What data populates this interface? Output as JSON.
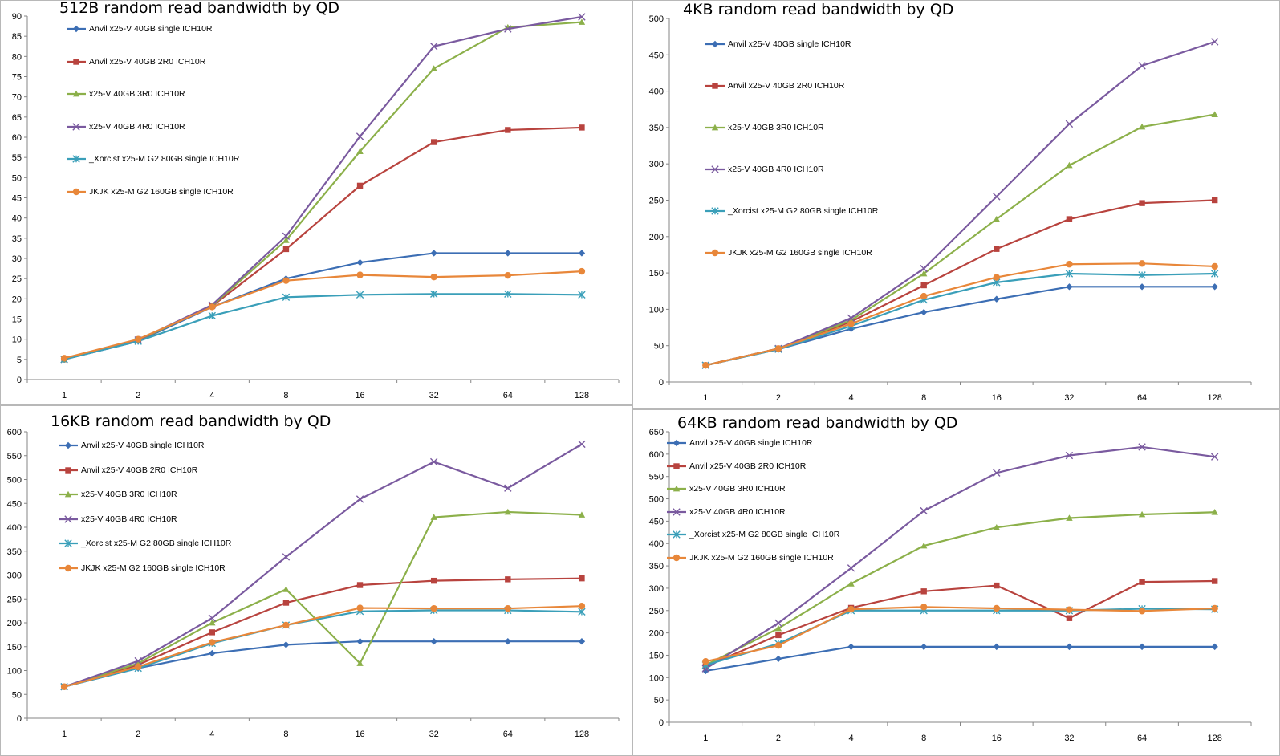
{
  "series_styles": [
    {
      "color": "#3c6eb4",
      "marker": "diamond"
    },
    {
      "color": "#b8433e",
      "marker": "square"
    },
    {
      "color": "#8cb04a",
      "marker": "triangle"
    },
    {
      "color": "#7a5a9f",
      "marker": "x"
    },
    {
      "color": "#3a9fb9",
      "marker": "star"
    },
    {
      "color": "#e8873a",
      "marker": "circle"
    }
  ],
  "chart_data": [
    {
      "type": "line",
      "title": "512B random read bandwidth by QD",
      "categories": [
        "1",
        "2",
        "4",
        "8",
        "16",
        "32",
        "64",
        "128"
      ],
      "ylim": [
        0,
        90
      ],
      "ytick_step": 5,
      "grid": false,
      "legend_position": "top-left",
      "series": [
        {
          "name": "Anvil x25-V 40GB single ICH10R",
          "values": [
            5,
            9.5,
            18,
            25,
            29,
            31.3,
            31.3,
            31.3
          ]
        },
        {
          "name": "Anvil x25-V 40GB 2R0 ICH10R",
          "values": [
            5,
            9.8,
            18.2,
            32.3,
            48,
            58.8,
            61.8,
            62.4
          ]
        },
        {
          "name": "x25-V 40GB 3R0 ICH10R",
          "values": [
            5,
            9.7,
            18.3,
            34.5,
            56.5,
            77,
            87.2,
            88.5
          ]
        },
        {
          "name": "x25-V 40GB 4R0 ICH10R",
          "values": [
            5,
            9.8,
            18.5,
            35.5,
            60.2,
            82.5,
            86.8,
            89.8
          ]
        },
        {
          "name": "_Xorcist x25-M G2 80GB single ICH10R",
          "values": [
            5,
            9.5,
            15.8,
            20.4,
            21,
            21.2,
            21.2,
            21
          ]
        },
        {
          "name": "JKJK x25-M G2 160GB single ICH10R",
          "values": [
            5.3,
            10,
            18,
            24.5,
            25.9,
            25.4,
            25.8,
            26.8
          ]
        }
      ]
    },
    {
      "type": "line",
      "title": "4KB random read bandwidth by QD",
      "categories": [
        "1",
        "2",
        "4",
        "8",
        "16",
        "32",
        "64",
        "128"
      ],
      "ylim": [
        0,
        500
      ],
      "ytick_step": 50,
      "grid": false,
      "legend_position": "top-left",
      "series": [
        {
          "name": "Anvil x25-V 40GB single ICH10R",
          "values": [
            23,
            45,
            73,
            96,
            114,
            131,
            131,
            131
          ]
        },
        {
          "name": "Anvil x25-V 40GB 2R0 ICH10R",
          "values": [
            23,
            46,
            83,
            133,
            183,
            224,
            246,
            250
          ]
        },
        {
          "name": "x25-V 40GB 3R0 ICH10R",
          "values": [
            23,
            46,
            85,
            149,
            224,
            298,
            351,
            368
          ]
        },
        {
          "name": "x25-V 40GB 4R0 ICH10R",
          "values": [
            23,
            46,
            88,
            156,
            255,
            355,
            435,
            468
          ]
        },
        {
          "name": "_Xorcist x25-M G2 80GB single ICH10R",
          "values": [
            23,
            45,
            77,
            113,
            137,
            149,
            147,
            149
          ]
        },
        {
          "name": "JKJK x25-M G2 160GB single ICH10R",
          "values": [
            23,
            46,
            80,
            118,
            144,
            162,
            163,
            159
          ]
        }
      ]
    },
    {
      "type": "line",
      "title": "16KB random read bandwidth by QD",
      "categories": [
        "1",
        "2",
        "4",
        "8",
        "16",
        "32",
        "64",
        "128"
      ],
      "ylim": [
        0,
        600
      ],
      "ytick_step": 50,
      "grid": false,
      "legend_position": "top-left",
      "series": [
        {
          "name": "Anvil x25-V 40GB single ICH10R",
          "values": [
            66,
            105,
            136,
            154,
            161,
            161,
            161,
            161
          ]
        },
        {
          "name": "Anvil x25-V 40GB 2R0 ICH10R",
          "values": [
            66,
            112,
            180,
            242,
            279,
            288,
            291,
            293
          ]
        },
        {
          "name": "x25-V 40GB 3R0 ICH10R",
          "values": [
            66,
            115,
            200,
            270,
            115,
            421,
            432,
            426
          ]
        },
        {
          "name": "x25-V 40GB 4R0 ICH10R",
          "values": [
            66,
            120,
            210,
            338,
            459,
            537,
            482,
            574
          ]
        },
        {
          "name": "_Xorcist x25-M G2 80GB single ICH10R",
          "values": [
            66,
            105,
            157,
            195,
            224,
            226,
            226,
            223
          ]
        },
        {
          "name": "JKJK x25-M G2 160GB single ICH10R",
          "values": [
            66,
            108,
            159,
            195,
            231,
            230,
            230,
            235
          ]
        }
      ]
    },
    {
      "type": "line",
      "title": "64KB random read bandwidth by QD",
      "categories": [
        "1",
        "2",
        "4",
        "8",
        "16",
        "32",
        "64",
        "128"
      ],
      "ylim": [
        0,
        650
      ],
      "ytick_step": 50,
      "grid": false,
      "legend_position": "top-left",
      "series": [
        {
          "name": "Anvil x25-V 40GB single ICH10R",
          "values": [
            115,
            142,
            169,
            169,
            169,
            169,
            169,
            169
          ]
        },
        {
          "name": "Anvil x25-V 40GB 2R0 ICH10R",
          "values": [
            125,
            195,
            256,
            293,
            306,
            233,
            314,
            316
          ]
        },
        {
          "name": "x25-V 40GB 3R0 ICH10R",
          "values": [
            128,
            210,
            310,
            395,
            436,
            457,
            465,
            470
          ]
        },
        {
          "name": "x25-V 40GB 4R0 ICH10R",
          "values": [
            120,
            222,
            345,
            473,
            558,
            597,
            616,
            594
          ]
        },
        {
          "name": "_Xorcist x25-M G2 80GB single ICH10R",
          "values": [
            128,
            176,
            250,
            250,
            250,
            250,
            254,
            253
          ]
        },
        {
          "name": "JKJK x25-M G2 160GB single ICH10R",
          "values": [
            136,
            172,
            253,
            258,
            255,
            252,
            249,
            255
          ]
        }
      ]
    }
  ]
}
